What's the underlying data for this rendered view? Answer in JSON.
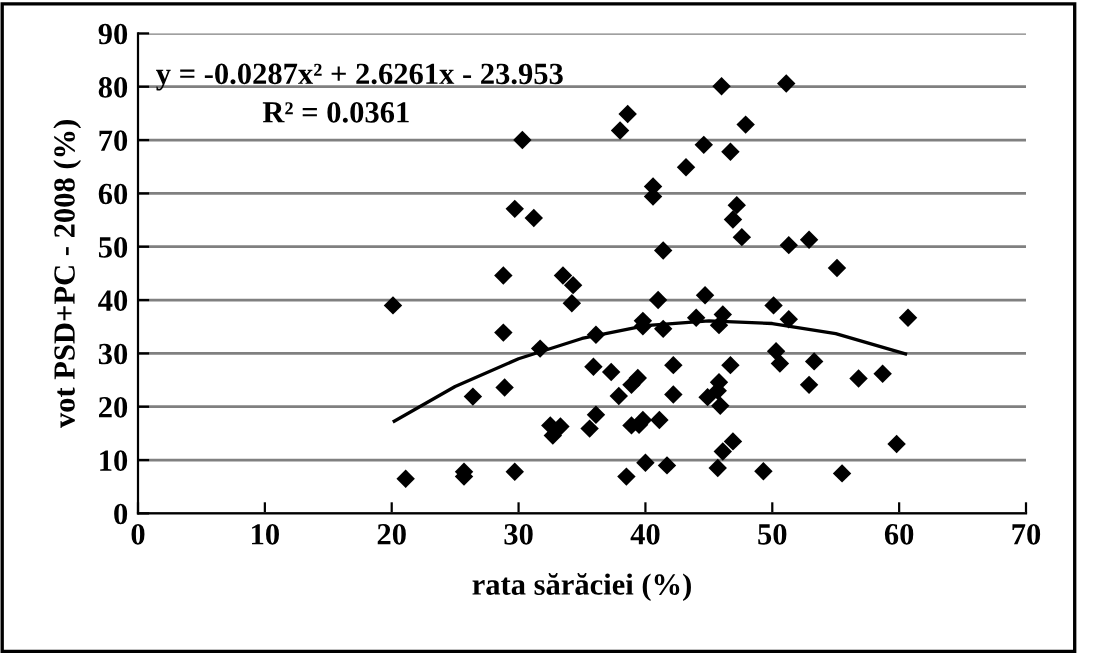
{
  "chart_data": {
    "type": "scatter",
    "xlabel": "rata sărăciei (%)",
    "ylabel": "vot PSD+PC - 2008 (%)",
    "xlim": [
      0,
      70
    ],
    "xticks": [
      0,
      10,
      20,
      30,
      40,
      50,
      60,
      70
    ],
    "ylim": [
      0,
      90
    ],
    "yticks": [
      0,
      10,
      20,
      30,
      40,
      50,
      60,
      70,
      80,
      90
    ],
    "grid": "y",
    "marker": "diamond",
    "annotations": [
      "y = -0.0287x² + 2.6261x - 23.953",
      "R² = 0.0361"
    ],
    "series": [
      {
        "color": "#000000",
        "x": [
          30.3,
          29.7,
          31.2,
          28.8,
          33.5,
          34.3,
          20.1,
          34.2,
          46.0,
          51.1,
          38.6,
          38.0,
          47.9,
          44.6,
          46.7,
          43.2,
          40.6,
          40.6,
          47.2,
          46.9,
          47.6,
          41.4,
          51.3,
          52.9,
          55.1,
          41.0,
          44.7,
          50.1,
          44.0,
          46.1,
          51.3,
          39.8,
          60.7,
          28.8,
          36.1,
          31.7,
          35.9,
          28.9,
          26.4,
          36.1,
          32.5,
          33.3,
          32.7,
          35.6,
          25.7,
          25.7,
          29.7,
          21.1,
          39.8,
          41.4,
          45.8,
          50.3,
          50.6,
          53.3,
          37.3,
          42.2,
          46.7,
          39.4,
          38.9,
          37.9,
          42.2,
          45.8,
          45.7,
          44.9,
          45.9,
          52.9,
          56.8,
          58.7,
          38.9,
          39.5,
          39.8,
          41.1,
          46.9,
          46.1,
          59.8,
          40.0,
          41.7,
          45.7,
          49.3,
          55.5,
          38.5
        ],
        "values": [
          70.0,
          57.1,
          55.4,
          44.6,
          44.6,
          42.8,
          39.0,
          39.4,
          80.1,
          80.6,
          74.9,
          71.8,
          72.9,
          69.1,
          67.8,
          64.9,
          61.3,
          59.4,
          57.8,
          55.1,
          51.8,
          49.3,
          50.3,
          51.3,
          46.0,
          40.0,
          40.9,
          39.0,
          36.7,
          37.3,
          36.4,
          36.1,
          36.7,
          33.9,
          33.5,
          30.9,
          27.5,
          23.6,
          21.9,
          18.5,
          16.5,
          16.3,
          14.6,
          15.9,
          7.8,
          6.9,
          7.8,
          6.5,
          35.1,
          34.6,
          35.3,
          30.4,
          28.1,
          28.5,
          26.5,
          27.8,
          27.8,
          25.4,
          24.1,
          22.0,
          22.3,
          24.6,
          23.0,
          21.8,
          20.2,
          24.1,
          25.3,
          26.2,
          16.5,
          16.6,
          17.5,
          17.5,
          13.5,
          11.6,
          13.0,
          9.5,
          9.0,
          8.5,
          7.9,
          7.5,
          6.9
        ]
      },
      {
        "type": "line",
        "color": "#000000",
        "marker": "none",
        "x": [
          20.2,
          25,
          30,
          35,
          40,
          45,
          50,
          55,
          60.5
        ],
        "values": [
          17.3,
          23.8,
          29.0,
          32.8,
          35.2,
          36.1,
          35.6,
          33.7,
          29.9
        ]
      }
    ]
  }
}
